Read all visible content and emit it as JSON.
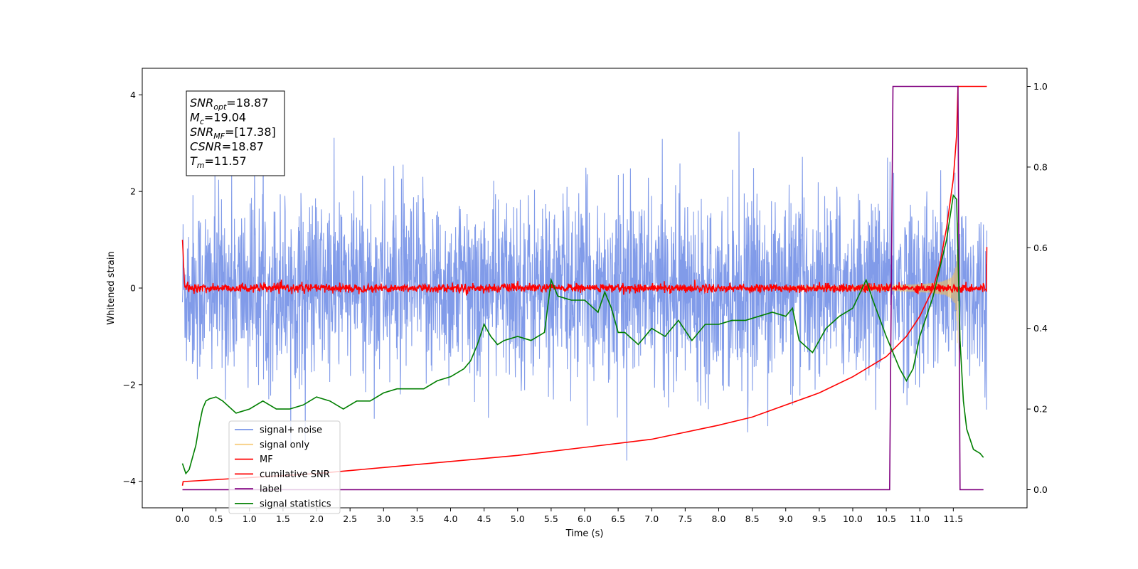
{
  "chart_data": {
    "type": "line",
    "xlabel": "Time (s)",
    "ylabel_left": "Whitened strain",
    "ylabel_right": "",
    "xlim": [
      -0.6,
      12.6
    ],
    "ylim_left": [
      -4.55,
      4.55
    ],
    "ylim_right": [
      -0.045,
      1.045
    ],
    "x_ticks": [
      0.0,
      0.5,
      1.0,
      1.5,
      2.0,
      2.5,
      3.0,
      3.5,
      4.0,
      4.5,
      5.0,
      5.5,
      6.0,
      6.5,
      7.0,
      7.5,
      8.0,
      8.5,
      9.0,
      9.5,
      10.0,
      10.5,
      11.0,
      11.5
    ],
    "x_tick_labels": [
      "0.0",
      "0.5",
      "1.0",
      "1.5",
      "2.0",
      "2.5",
      "3.0",
      "3.5",
      "4.0",
      "4.5",
      "5.0",
      "5.5",
      "6.0",
      "6.5",
      "7.0",
      "7.5",
      "8.0",
      "8.5",
      "9.0",
      "9.5",
      "10.0",
      "10.5",
      "11.0",
      "11.5"
    ],
    "y_left_ticks": [
      -4,
      -2,
      0,
      2,
      4
    ],
    "y_left_tick_labels": [
      "−4",
      "−2",
      "0",
      "2",
      "4"
    ],
    "y_right_ticks": [
      0.0,
      0.2,
      0.4,
      0.6,
      0.8,
      1.0
    ],
    "y_right_tick_labels": [
      "0.0",
      "0.2",
      "0.4",
      "0.6",
      "0.8",
      "1.0"
    ],
    "grid": false,
    "legend_position": "lower-left",
    "info_box": {
      "lines": [
        {
          "main": "SNR",
          "sub": "opt",
          "rest": "=18.87"
        },
        {
          "main": "M",
          "sub": "c",
          "rest": "=19.04"
        },
        {
          "main": "SNR",
          "sub": "MF",
          "rest": "=[17.38]"
        },
        {
          "main": "CSNR",
          "sub": "",
          "rest": "=18.87"
        },
        {
          "main": "T",
          "sub": "m",
          "rest": "=11.57"
        }
      ]
    },
    "series": [
      {
        "name": "signal+ noise",
        "color": "#7a96e8",
        "axis": "left",
        "kind": "noise",
        "envelope": 2.6,
        "x_range": [
          0.0,
          12.0
        ]
      },
      {
        "name": "signal only",
        "color": "#f5c05a",
        "axis": "left",
        "kind": "chirp",
        "x_range": [
          9.0,
          11.57
        ],
        "peak_amplitude": 3.2
      },
      {
        "name": "MF",
        "color": "#ff0000",
        "axis": "left",
        "kind": "mf",
        "level": 0.0,
        "x_range": [
          0.0,
          12.0
        ]
      },
      {
        "name": "cumilative SNR",
        "color": "#ff0000",
        "axis": "right",
        "x": [
          0.0,
          0.01,
          1.0,
          2.0,
          3.0,
          4.0,
          5.0,
          6.0,
          7.0,
          8.0,
          8.5,
          9.0,
          9.5,
          10.0,
          10.5,
          10.8,
          11.0,
          11.2,
          11.3,
          11.4,
          11.5,
          11.55,
          11.57,
          11.6,
          12.0
        ],
        "values": [
          0.01,
          0.02,
          0.03,
          0.04,
          0.055,
          0.07,
          0.085,
          0.105,
          0.125,
          0.16,
          0.18,
          0.21,
          0.24,
          0.28,
          0.33,
          0.38,
          0.43,
          0.5,
          0.56,
          0.65,
          0.77,
          0.88,
          1.0,
          1.0,
          1.0
        ]
      },
      {
        "name": "label",
        "color": "#800080",
        "axis": "right",
        "x": [
          0.0,
          10.55,
          10.6,
          11.57,
          11.6,
          11.95
        ],
        "values": [
          0.0,
          0.0,
          1.0,
          1.0,
          0.0,
          0.0
        ]
      },
      {
        "name": "signal statistics",
        "color": "#007f00",
        "axis": "right",
        "x": [
          0.0,
          0.05,
          0.1,
          0.15,
          0.2,
          0.25,
          0.3,
          0.35,
          0.4,
          0.5,
          0.6,
          0.8,
          1.0,
          1.2,
          1.4,
          1.6,
          1.8,
          2.0,
          2.2,
          2.4,
          2.6,
          2.8,
          3.0,
          3.2,
          3.4,
          3.6,
          3.8,
          4.0,
          4.2,
          4.3,
          4.4,
          4.5,
          4.6,
          4.7,
          4.8,
          5.0,
          5.2,
          5.4,
          5.5,
          5.6,
          5.8,
          6.0,
          6.2,
          6.3,
          6.4,
          6.5,
          6.6,
          6.8,
          7.0,
          7.2,
          7.4,
          7.6,
          7.8,
          8.0,
          8.2,
          8.4,
          8.6,
          8.8,
          9.0,
          9.1,
          9.2,
          9.4,
          9.6,
          9.8,
          10.0,
          10.2,
          10.3,
          10.5,
          10.7,
          10.8,
          10.9,
          11.0,
          11.1,
          11.2,
          11.3,
          11.4,
          11.5,
          11.55,
          11.6,
          11.65,
          11.7,
          11.8,
          11.9,
          11.95
        ],
        "values": [
          0.065,
          0.04,
          0.05,
          0.08,
          0.11,
          0.16,
          0.2,
          0.22,
          0.225,
          0.23,
          0.22,
          0.19,
          0.2,
          0.22,
          0.2,
          0.2,
          0.21,
          0.23,
          0.22,
          0.2,
          0.22,
          0.22,
          0.24,
          0.25,
          0.25,
          0.25,
          0.27,
          0.28,
          0.3,
          0.32,
          0.36,
          0.41,
          0.38,
          0.36,
          0.37,
          0.38,
          0.37,
          0.39,
          0.52,
          0.48,
          0.47,
          0.47,
          0.44,
          0.49,
          0.45,
          0.39,
          0.39,
          0.36,
          0.4,
          0.38,
          0.42,
          0.37,
          0.41,
          0.41,
          0.42,
          0.42,
          0.43,
          0.44,
          0.43,
          0.45,
          0.37,
          0.34,
          0.4,
          0.43,
          0.45,
          0.52,
          0.47,
          0.38,
          0.3,
          0.27,
          0.3,
          0.38,
          0.43,
          0.48,
          0.55,
          0.62,
          0.73,
          0.72,
          0.37,
          0.22,
          0.15,
          0.1,
          0.09,
          0.08
        ]
      }
    ]
  }
}
